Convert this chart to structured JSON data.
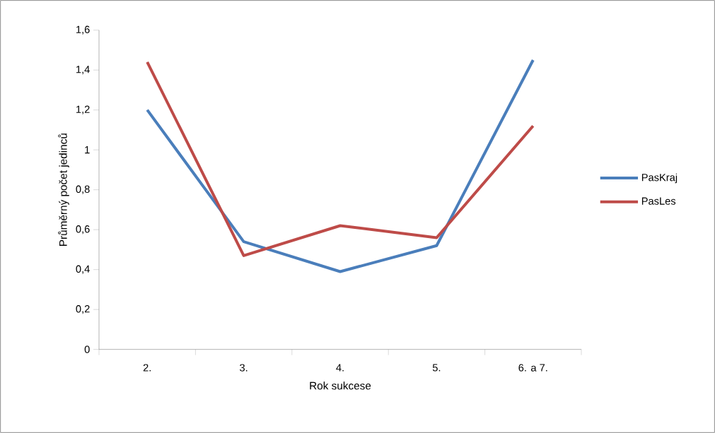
{
  "chart_data": {
    "type": "line",
    "xlabel": "Rok sukcese",
    "ylabel": "Průměrný počet jedinců",
    "categories": [
      "2.",
      "3.",
      "4.",
      "5.",
      "6. a 7."
    ],
    "series": [
      {
        "name": "PasKraj",
        "color": "#4a7ebb",
        "values": [
          1.2,
          0.54,
          0.39,
          0.52,
          1.45
        ]
      },
      {
        "name": "PasLes",
        "color": "#be4b48",
        "values": [
          1.44,
          0.47,
          0.62,
          0.56,
          1.12
        ]
      }
    ],
    "ylim": [
      0,
      1.6
    ],
    "yticks": [
      {
        "value": 0,
        "label": "0"
      },
      {
        "value": 0.2,
        "label": "0,2"
      },
      {
        "value": 0.4,
        "label": "0,4"
      },
      {
        "value": 0.6,
        "label": "0,6"
      },
      {
        "value": 0.8,
        "label": "0,8"
      },
      {
        "value": 1,
        "label": "1"
      },
      {
        "value": 1.2,
        "label": "1,2"
      },
      {
        "value": 1.4,
        "label": "1,4"
      },
      {
        "value": 1.6,
        "label": "1,6"
      }
    ],
    "legend": "right",
    "marker": "none"
  }
}
